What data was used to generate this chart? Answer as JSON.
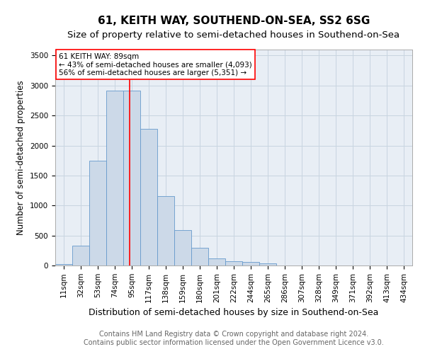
{
  "title": "61, KEITH WAY, SOUTHEND-ON-SEA, SS2 6SG",
  "subtitle": "Size of property relative to semi-detached houses in Southend-on-Sea",
  "xlabel": "Distribution of semi-detached houses by size in Southend-on-Sea",
  "ylabel": "Number of semi-detached properties",
  "bin_labels": [
    "11sqm",
    "32sqm",
    "53sqm",
    "74sqm",
    "95sqm",
    "117sqm",
    "138sqm",
    "159sqm",
    "180sqm",
    "201sqm",
    "222sqm",
    "244sqm",
    "265sqm",
    "286sqm",
    "307sqm",
    "328sqm",
    "349sqm",
    "371sqm",
    "392sqm",
    "413sqm",
    "434sqm"
  ],
  "bar_values": [
    25,
    330,
    1750,
    2920,
    2920,
    2280,
    1160,
    590,
    290,
    120,
    65,
    55,
    30,
    5,
    0,
    0,
    0,
    0,
    0,
    0,
    0
  ],
  "bar_color": "#ccd9e8",
  "bar_edge_color": "#6699cc",
  "vline_color": "red",
  "vline_x": 3.857,
  "annotation_text": "61 KEITH WAY: 89sqm\n← 43% of semi-detached houses are smaller (4,093)\n56% of semi-detached houses are larger (5,351) →",
  "footer_text": "Contains HM Land Registry data © Crown copyright and database right 2024.\nContains public sector information licensed under the Open Government Licence v3.0.",
  "ylim": [
    0,
    3600
  ],
  "yticks": [
    0,
    500,
    1000,
    1500,
    2000,
    2500,
    3000,
    3500
  ],
  "background_color": "#ffffff",
  "axes_bg_color": "#e8eef5",
  "grid_color": "#c8d4e0",
  "title_fontsize": 11,
  "subtitle_fontsize": 9.5,
  "xlabel_fontsize": 9,
  "ylabel_fontsize": 8.5,
  "tick_fontsize": 7.5,
  "annotation_fontsize": 7.5,
  "footer_fontsize": 7
}
